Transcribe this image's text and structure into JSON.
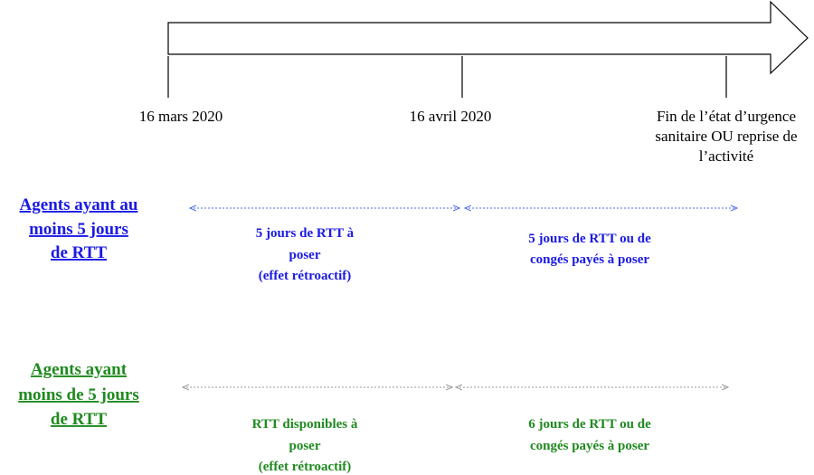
{
  "timeline": {
    "markers": [
      {
        "lines": [
          "16 mars 2020"
        ]
      },
      {
        "lines": [
          "16 avril 2020"
        ]
      },
      {
        "lines": [
          "Fin de l’état d’urgence",
          "sanitaire OU reprise de",
          "l’activité"
        ]
      }
    ]
  },
  "rows": [
    {
      "label": [
        "Agents ayant au",
        "moins 5 jours",
        "de RTT"
      ],
      "periods": [
        {
          "lines": [
            "5 jours de RTT à",
            "poser",
            "(effet rétroactif)"
          ]
        },
        {
          "lines": [
            "5 jours de RTT ou de",
            "congés payés à poser"
          ]
        }
      ]
    },
    {
      "label": [
        "Agents ayant",
        "moins de 5 jours",
        "de RTT"
      ],
      "periods": [
        {
          "lines": [
            "RTT disponibles à",
            "poser",
            "(effet rétroactif)"
          ]
        },
        {
          "lines": [
            "6 jours de RTT ou de",
            "congés payés à poser"
          ]
        }
      ]
    }
  ]
}
